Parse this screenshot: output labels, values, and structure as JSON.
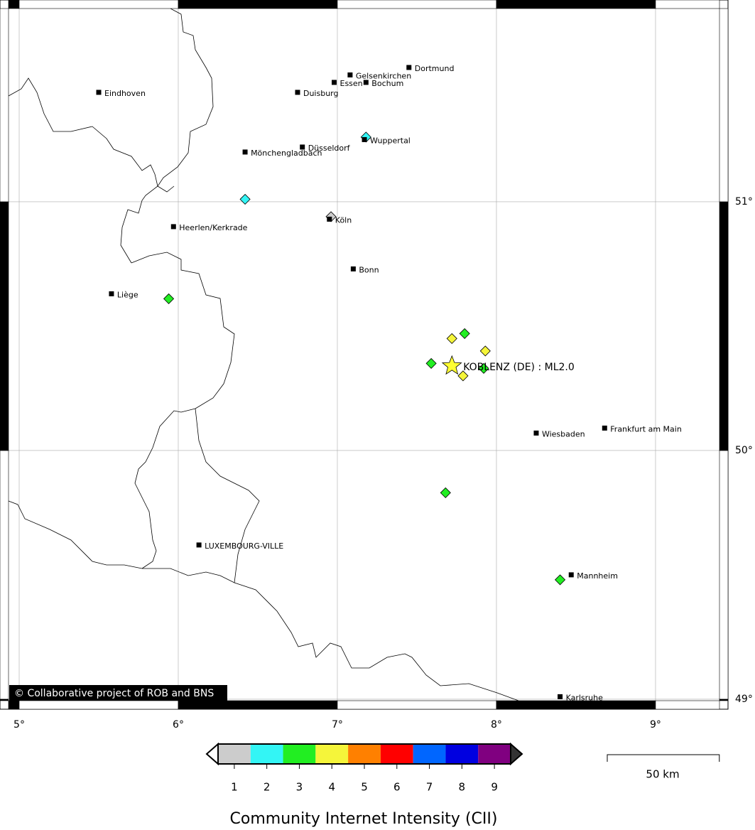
{
  "map": {
    "lonlim": [
      4.933,
      9.402
    ],
    "latlim": [
      48.994,
      51.777
    ],
    "lonticks": [
      {
        "value": 5,
        "label": "5°"
      },
      {
        "value": 6,
        "label": "6°"
      },
      {
        "value": 7,
        "label": "7°"
      },
      {
        "value": 8,
        "label": "8°"
      },
      {
        "value": 9,
        "label": "9°"
      }
    ],
    "latticks": [
      {
        "value": 49,
        "label": "49°"
      },
      {
        "value": 50,
        "label": "50°"
      },
      {
        "value": 51,
        "label": "51°"
      }
    ],
    "grid": true,
    "cities": [
      {
        "name": "Eindhoven",
        "lon": 5.5,
        "lat": 51.44
      },
      {
        "name": "Dortmund",
        "lon": 7.45,
        "lat": 51.54
      },
      {
        "name": "Gelsenkirchen",
        "lon": 7.08,
        "lat": 51.51
      },
      {
        "name": "Essen",
        "lon": 6.98,
        "lat": 51.48
      },
      {
        "name": "Bochum",
        "lon": 7.18,
        "lat": 51.48
      },
      {
        "name": "Duisburg",
        "lon": 6.75,
        "lat": 51.44
      },
      {
        "name": "Wuppertal",
        "lon": 7.17,
        "lat": 51.25
      },
      {
        "name": "Düsseldorf",
        "lon": 6.78,
        "lat": 51.22
      },
      {
        "name": "Mönchengladbach",
        "lon": 6.42,
        "lat": 51.2
      },
      {
        "name": "Köln",
        "lon": 6.95,
        "lat": 50.93
      },
      {
        "name": "Heerlen/Kerkrade",
        "lon": 5.97,
        "lat": 50.9
      },
      {
        "name": "Bonn",
        "lon": 7.1,
        "lat": 50.73
      },
      {
        "name": "Liège",
        "lon": 5.58,
        "lat": 50.63
      },
      {
        "name": "Wiesbaden",
        "lon": 8.25,
        "lat": 50.07
      },
      {
        "name": "Frankfurt am Main",
        "lon": 8.68,
        "lat": 50.09
      },
      {
        "name": "LUXEMBOURG-VILLE",
        "lon": 6.13,
        "lat": 49.62
      },
      {
        "name": "Mannheim",
        "lon": 8.47,
        "lat": 49.5
      },
      {
        "name": "Karlsruhe",
        "lon": 8.4,
        "lat": 49.01
      }
    ],
    "reports": [
      {
        "lon": 7.18,
        "lat": 51.26,
        "cii": 2
      },
      {
        "lon": 6.42,
        "lat": 51.01,
        "cii": 2
      },
      {
        "lon": 6.96,
        "lat": 50.94,
        "cii": 1
      },
      {
        "lon": 5.94,
        "lat": 50.61,
        "cii": 3
      },
      {
        "lon": 7.72,
        "lat": 50.45,
        "cii": 4
      },
      {
        "lon": 7.8,
        "lat": 50.47,
        "cii": 3
      },
      {
        "lon": 7.93,
        "lat": 50.4,
        "cii": 4
      },
      {
        "lon": 7.59,
        "lat": 50.35,
        "cii": 3
      },
      {
        "lon": 7.79,
        "lat": 50.3,
        "cii": 4
      },
      {
        "lon": 7.92,
        "lat": 50.33,
        "cii": 3
      },
      {
        "lon": 7.68,
        "lat": 49.83,
        "cii": 3
      },
      {
        "lon": 8.4,
        "lat": 49.48,
        "cii": 3
      }
    ],
    "epicenter": {
      "label": "KOBLENZ (DE) : ML2.0",
      "lon": 7.72,
      "lat": 50.34,
      "color": "#ffff33"
    },
    "credit": "© Collaborative project of ROB and BNS",
    "scale_bar": {
      "value": 50,
      "label": "50 km"
    },
    "legend": {
      "title": "Community Internet Intensity (CII)",
      "classes": [
        1,
        2,
        3,
        4,
        5,
        6,
        7,
        8,
        9
      ],
      "colors": [
        "#cccccc",
        "#33f5f5",
        "#22ee22",
        "#f5f53a",
        "#ff8000",
        "#ff0000",
        "#0066ff",
        "#0000e0",
        "#800080"
      ]
    }
  }
}
